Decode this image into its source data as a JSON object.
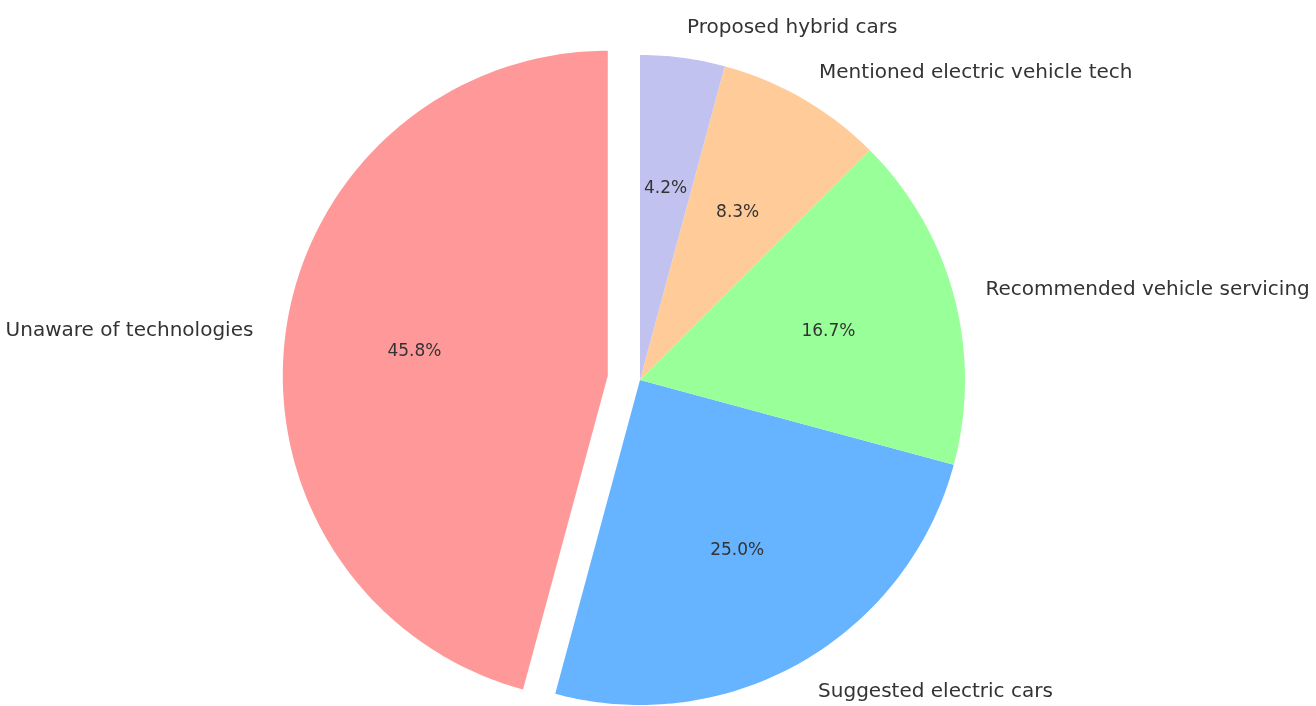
{
  "chart_data": {
    "type": "pie",
    "categories": [
      "Unaware of technologies",
      "Suggested electric cars",
      "Recommended vehicle servicing",
      "Mentioned electric vehicle tech",
      "Proposed hybrid cars"
    ],
    "values": [
      45.8,
      25.0,
      16.7,
      8.3,
      4.2
    ],
    "colors": [
      "#ff9999",
      "#66b3ff",
      "#99ff99",
      "#ffcc99",
      "#c2c2f0"
    ],
    "value_labels": [
      "45.8%",
      "25.0%",
      "16.7%",
      "8.3%",
      "4.2%"
    ]
  }
}
